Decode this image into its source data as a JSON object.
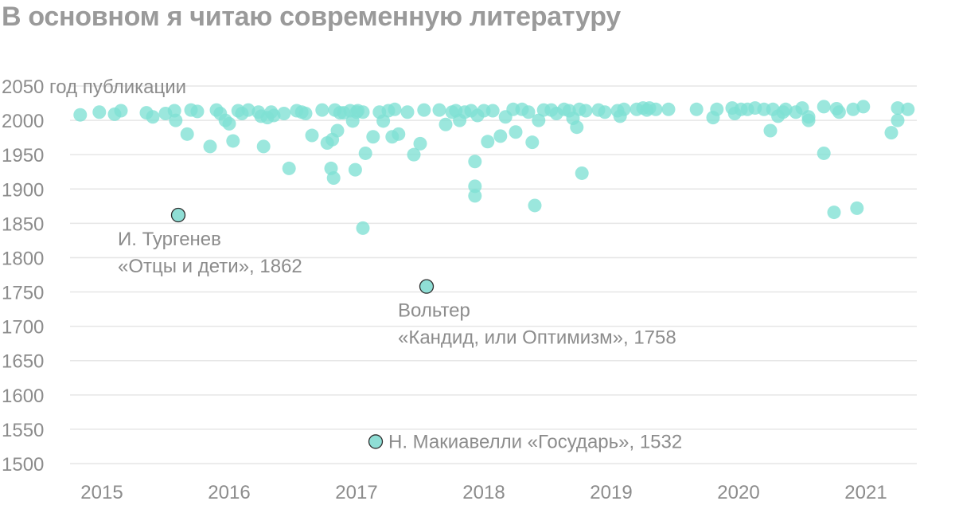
{
  "title": "В основном я читаю современную литературу",
  "chart_data": {
    "type": "scatter",
    "title": "В основном я читаю современную литературу",
    "ylabel": "год публикации",
    "xlabel": "",
    "ylim": [
      1500,
      2050
    ],
    "xlim": [
      2014.8,
      2021.45
    ],
    "grid": true,
    "yticks": [
      "2050",
      "2000",
      "1950",
      "1900",
      "1850",
      "1800",
      "1750",
      "1700",
      "1650",
      "1600",
      "1550",
      "1500"
    ],
    "xticks": [
      "2015",
      "2016",
      "2017",
      "2018",
      "2019",
      "2020",
      "2021"
    ],
    "point_color": "#7fe0d4",
    "highlight_color": "#8fded5",
    "highlights": [
      {
        "x": 2015.65,
        "y": 1862,
        "line1": "И. Тургенев",
        "line2": "«Отцы и дети», 1862"
      },
      {
        "x": 2017.6,
        "y": 1758,
        "line1": "Вольтер",
        "line2": "«Кандид, или Оптимизм», 1758"
      },
      {
        "x": 2017.2,
        "y": 1532,
        "line1": "Н. Макиавелли «Государь», 1532",
        "line2": ""
      }
    ],
    "points": [
      [
        2014.88,
        2008
      ],
      [
        2015.03,
        2012
      ],
      [
        2015.15,
        2009
      ],
      [
        2015.2,
        2014
      ],
      [
        2015.4,
        2011
      ],
      [
        2015.45,
        2005
      ],
      [
        2015.55,
        2010
      ],
      [
        2015.62,
        2014
      ],
      [
        2015.63,
        2000
      ],
      [
        2015.72,
        1980
      ],
      [
        2015.75,
        2015
      ],
      [
        2015.8,
        2013
      ],
      [
        2015.9,
        1962
      ],
      [
        2015.95,
        2015
      ],
      [
        2015.98,
        2010
      ],
      [
        2016.02,
        2000
      ],
      [
        2016.05,
        1995
      ],
      [
        2016.08,
        1970
      ],
      [
        2016.12,
        2014
      ],
      [
        2016.15,
        2010
      ],
      [
        2016.2,
        2015
      ],
      [
        2016.28,
        2012
      ],
      [
        2016.3,
        2006
      ],
      [
        2016.32,
        1962
      ],
      [
        2016.35,
        2004
      ],
      [
        2016.38,
        2012
      ],
      [
        2016.4,
        2007
      ],
      [
        2016.48,
        2010
      ],
      [
        2016.52,
        1930
      ],
      [
        2016.58,
        2014
      ],
      [
        2016.62,
        2012
      ],
      [
        2016.65,
        2010
      ],
      [
        2016.7,
        1978
      ],
      [
        2016.78,
        2015
      ],
      [
        2016.82,
        1967
      ],
      [
        2016.85,
        1930
      ],
      [
        2016.86,
        1972
      ],
      [
        2016.87,
        1916
      ],
      [
        2016.88,
        2015
      ],
      [
        2016.9,
        1985
      ],
      [
        2016.92,
        2011
      ],
      [
        2016.95,
        2011
      ],
      [
        2017.0,
        2014
      ],
      [
        2017.02,
        1999
      ],
      [
        2017.04,
        1928
      ],
      [
        2017.05,
        2012
      ],
      [
        2017.06,
        2014
      ],
      [
        2017.1,
        2012
      ],
      [
        2017.12,
        1952
      ],
      [
        2017.1,
        1843
      ],
      [
        2017.18,
        1976
      ],
      [
        2017.23,
        2012
      ],
      [
        2017.26,
        1999
      ],
      [
        2017.3,
        2014
      ],
      [
        2017.33,
        1976
      ],
      [
        2017.35,
        2016
      ],
      [
        2017.38,
        1980
      ],
      [
        2017.45,
        2012
      ],
      [
        2017.5,
        1950
      ],
      [
        2017.55,
        1966
      ],
      [
        2017.58,
        2015
      ],
      [
        2017.7,
        2015
      ],
      [
        2017.75,
        1994
      ],
      [
        2017.8,
        2012
      ],
      [
        2017.83,
        2014
      ],
      [
        2017.86,
        2000
      ],
      [
        2017.9,
        2012
      ],
      [
        2017.95,
        2014
      ],
      [
        2017.98,
        1940
      ],
      [
        2017.98,
        1904
      ],
      [
        2017.98,
        1890
      ],
      [
        2018.0,
        2007
      ],
      [
        2018.05,
        2014
      ],
      [
        2018.08,
        1969
      ],
      [
        2018.12,
        2014
      ],
      [
        2018.18,
        1977
      ],
      [
        2018.22,
        2005
      ],
      [
        2018.28,
        2016
      ],
      [
        2018.3,
        1983
      ],
      [
        2018.35,
        2016
      ],
      [
        2018.4,
        2012
      ],
      [
        2018.43,
        1968
      ],
      [
        2018.45,
        1876
      ],
      [
        2018.48,
        2000
      ],
      [
        2018.52,
        2015
      ],
      [
        2018.58,
        2015
      ],
      [
        2018.62,
        2010
      ],
      [
        2018.68,
        2016
      ],
      [
        2018.72,
        2014
      ],
      [
        2018.75,
        2003
      ],
      [
        2018.78,
        1990
      ],
      [
        2018.8,
        2016
      ],
      [
        2018.82,
        1923
      ],
      [
        2018.85,
        2014
      ],
      [
        2018.95,
        2015
      ],
      [
        2019.0,
        2012
      ],
      [
        2019.1,
        2014
      ],
      [
        2019.12,
        2006
      ],
      [
        2019.15,
        2016
      ],
      [
        2019.25,
        2016
      ],
      [
        2019.3,
        2018
      ],
      [
        2019.33,
        2015
      ],
      [
        2019.35,
        2018
      ],
      [
        2019.4,
        2016
      ],
      [
        2019.5,
        2016
      ],
      [
        2019.72,
        2016
      ],
      [
        2019.85,
        2004
      ],
      [
        2019.88,
        2016
      ],
      [
        2020.0,
        2018
      ],
      [
        2020.02,
        2010
      ],
      [
        2020.07,
        2016
      ],
      [
        2020.12,
        2016
      ],
      [
        2020.18,
        2018
      ],
      [
        2020.25,
        2016
      ],
      [
        2020.3,
        1985
      ],
      [
        2020.32,
        2016
      ],
      [
        2020.36,
        2006
      ],
      [
        2020.4,
        2012
      ],
      [
        2020.42,
        2016
      ],
      [
        2020.5,
        2012
      ],
      [
        2020.55,
        2018
      ],
      [
        2020.6,
        2005
      ],
      [
        2020.6,
        2000
      ],
      [
        2020.72,
        2020
      ],
      [
        2020.72,
        1952
      ],
      [
        2020.8,
        1866
      ],
      [
        2020.82,
        2017
      ],
      [
        2020.84,
        2012
      ],
      [
        2020.95,
        2016
      ],
      [
        2020.98,
        1872
      ],
      [
        2021.03,
        2020
      ],
      [
        2021.25,
        1982
      ],
      [
        2021.3,
        2018
      ],
      [
        2021.3,
        2000
      ],
      [
        2021.38,
        2016
      ]
    ]
  }
}
